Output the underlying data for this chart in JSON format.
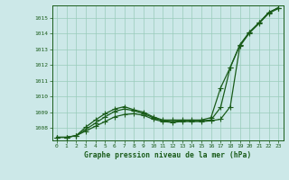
{
  "xlabel": "Graphe pression niveau de la mer (hPa)",
  "xlim": [
    -0.5,
    23.5
  ],
  "ylim": [
    1007.2,
    1015.8
  ],
  "yticks": [
    1008,
    1009,
    1010,
    1011,
    1012,
    1013,
    1014,
    1015
  ],
  "xticks": [
    0,
    1,
    2,
    3,
    4,
    5,
    6,
    7,
    8,
    9,
    10,
    11,
    12,
    13,
    14,
    15,
    16,
    17,
    18,
    19,
    20,
    21,
    22,
    23
  ],
  "background_color": "#cce8e8",
  "grid_color": "#99ccbb",
  "line_color": "#1a5c1a",
  "line1_x": [
    0,
    1,
    2,
    3,
    4,
    5,
    6,
    7,
    8,
    9,
    10,
    11,
    12,
    13,
    14,
    15,
    16,
    17,
    18,
    19,
    20,
    21,
    22,
    23
  ],
  "line1_y": [
    1007.4,
    1007.4,
    1007.5,
    1007.8,
    1008.1,
    1008.4,
    1008.7,
    1008.85,
    1008.9,
    1008.8,
    1008.55,
    1008.4,
    1008.35,
    1008.4,
    1008.4,
    1008.4,
    1008.45,
    1008.55,
    1009.35,
    1013.2,
    1014.05,
    1014.65,
    1015.3,
    1015.6
  ],
  "line2_x": [
    0,
    1,
    2,
    3,
    4,
    5,
    6,
    7,
    8,
    9,
    10,
    11,
    12,
    13,
    14,
    15,
    16,
    17,
    18,
    19,
    20,
    21,
    22,
    23
  ],
  "line2_y": [
    1007.4,
    1007.4,
    1007.5,
    1007.9,
    1008.3,
    1008.7,
    1009.05,
    1009.2,
    1009.1,
    1008.9,
    1008.65,
    1008.45,
    1008.4,
    1008.45,
    1008.45,
    1008.45,
    1008.5,
    1009.3,
    1011.85,
    1013.25,
    1014.1,
    1014.7,
    1015.35,
    1015.65
  ],
  "line3_x": [
    0,
    1,
    2,
    3,
    4,
    5,
    6,
    7,
    8,
    9,
    10,
    11,
    12,
    13,
    14,
    15,
    16,
    17,
    18,
    19,
    20,
    21,
    22,
    23
  ],
  "line3_y": [
    1007.4,
    1007.4,
    1007.5,
    1008.05,
    1008.5,
    1008.9,
    1009.2,
    1009.35,
    1009.15,
    1009.0,
    1008.7,
    1008.5,
    1008.5,
    1008.5,
    1008.5,
    1008.5,
    1008.65,
    1010.55,
    1011.85,
    1013.3,
    1014.1,
    1014.7,
    1015.35,
    1015.65
  ],
  "marker": "+",
  "markersize": 4.0,
  "linewidth": 0.9
}
